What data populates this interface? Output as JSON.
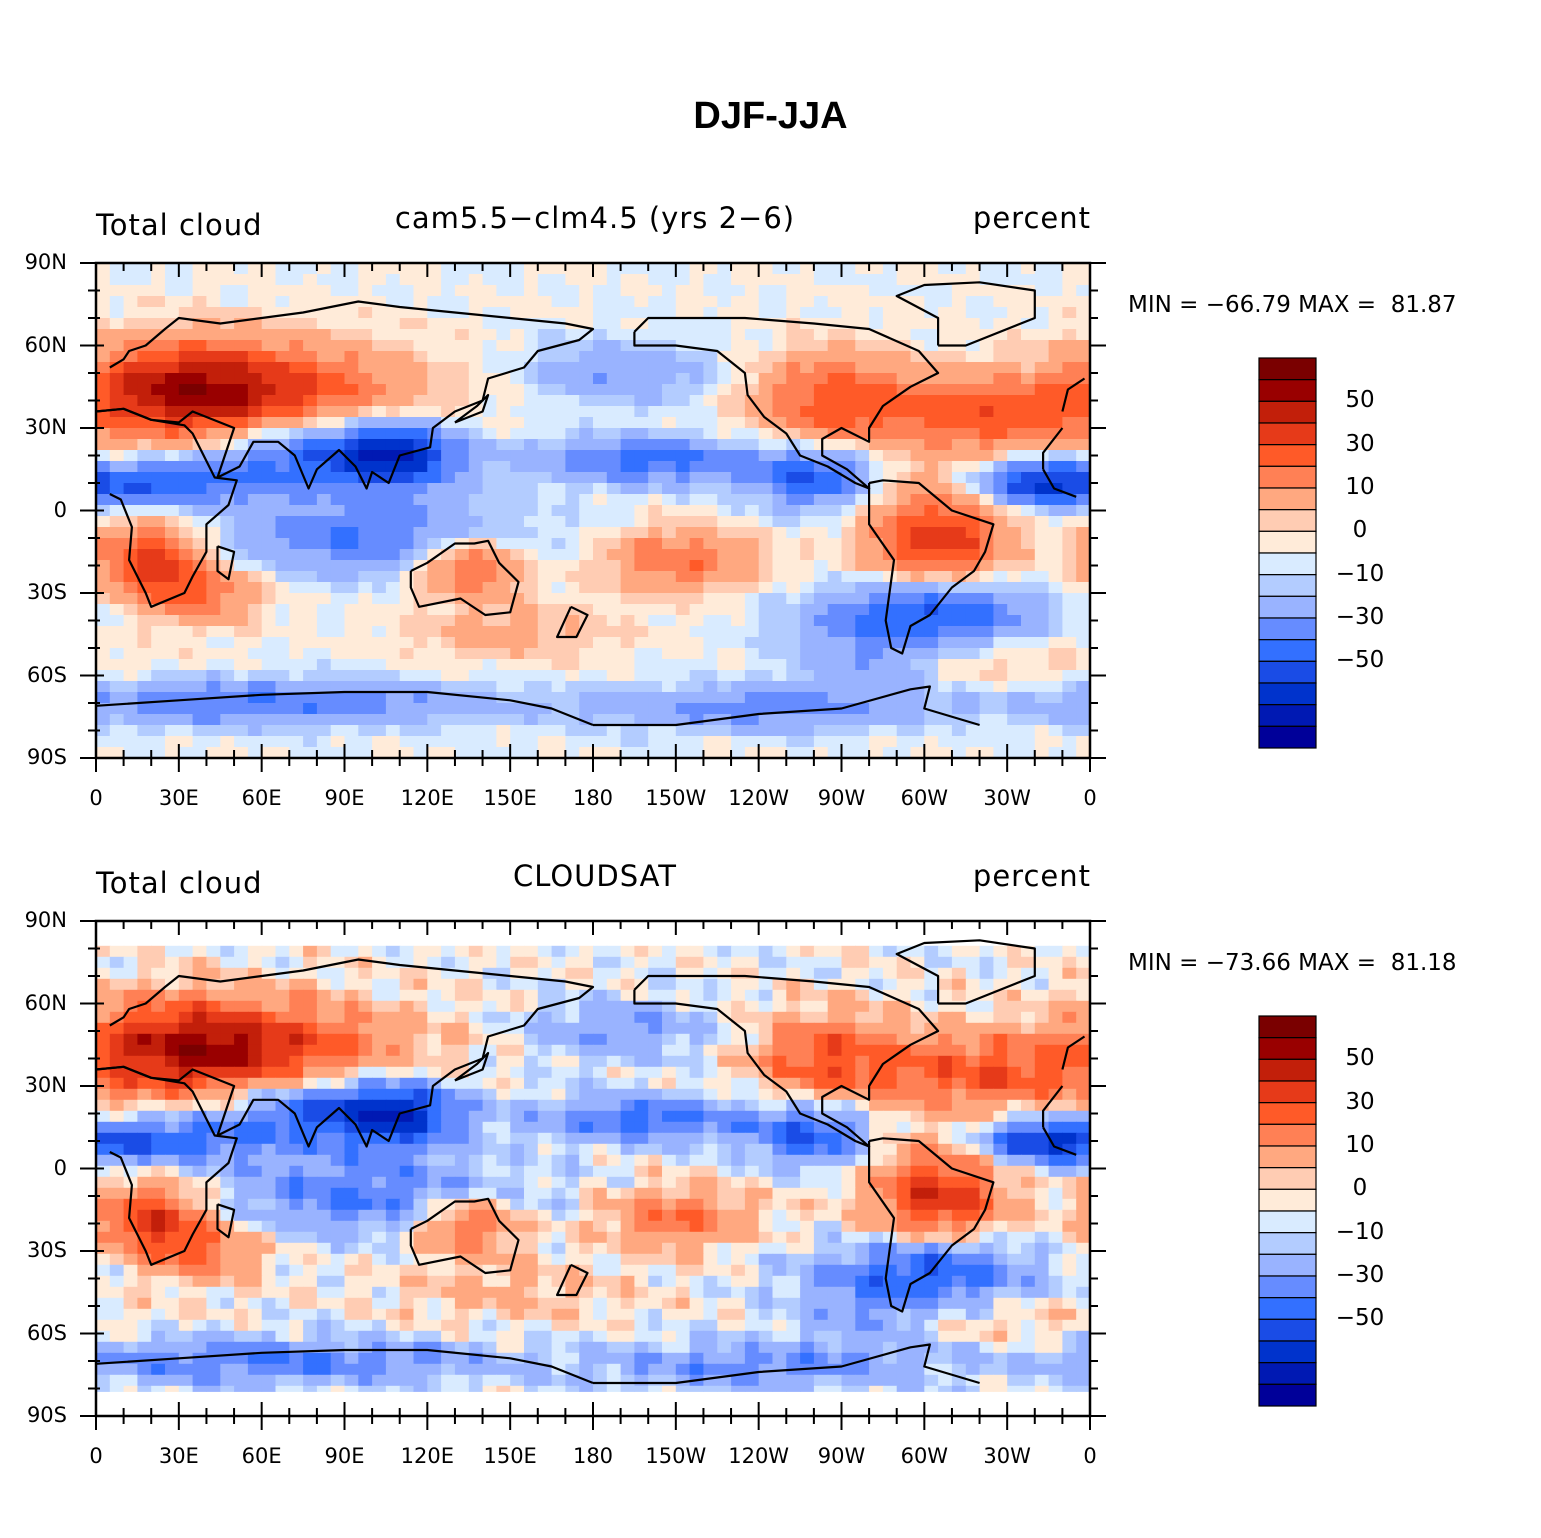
{
  "title": "DJF-JJA",
  "colors": {
    "levels": [
      "#000099",
      "#0019b3",
      "#0033cc",
      "#1a4ce6",
      "#3370ff",
      "#668cff",
      "#99b3ff",
      "#b3ccff",
      "#d9ebff",
      "#ffebd9",
      "#ffccb3",
      "#ffa880",
      "#ff8055",
      "#ff5a28",
      "#e63a19",
      "#c21f0a",
      "#990000",
      "#7a0000"
    ],
    "land_outline": "#000000",
    "frame": "#000000"
  },
  "panels": [
    {
      "left_label": "Total cloud",
      "center_label": "cam5.5−clm4.5 (yrs 2−6)",
      "right_label": "percent",
      "minmax": "MIN = −66.79 MAX =  81.87",
      "data_lat_max": 90,
      "data_lat_min": -90
    },
    {
      "left_label": "Total cloud",
      "center_label": "CLOUDSAT",
      "right_label": "percent",
      "minmax": "MIN = −73.66 MAX =  81.18",
      "data_lat_max": 81,
      "data_lat_min": -81
    }
  ],
  "axes": {
    "y_ticks": [
      "90N",
      "60N",
      "30N",
      "0",
      "30S",
      "60S",
      "90S"
    ],
    "x_ticks": [
      "0",
      "30E",
      "60E",
      "90E",
      "120E",
      "150E",
      "180",
      "150W",
      "120W",
      "90W",
      "60W",
      "30W",
      "0"
    ]
  },
  "colorbar": {
    "labels": [
      "50",
      "30",
      "10",
      "0",
      "−10",
      "−30",
      "−50"
    ]
  }
}
